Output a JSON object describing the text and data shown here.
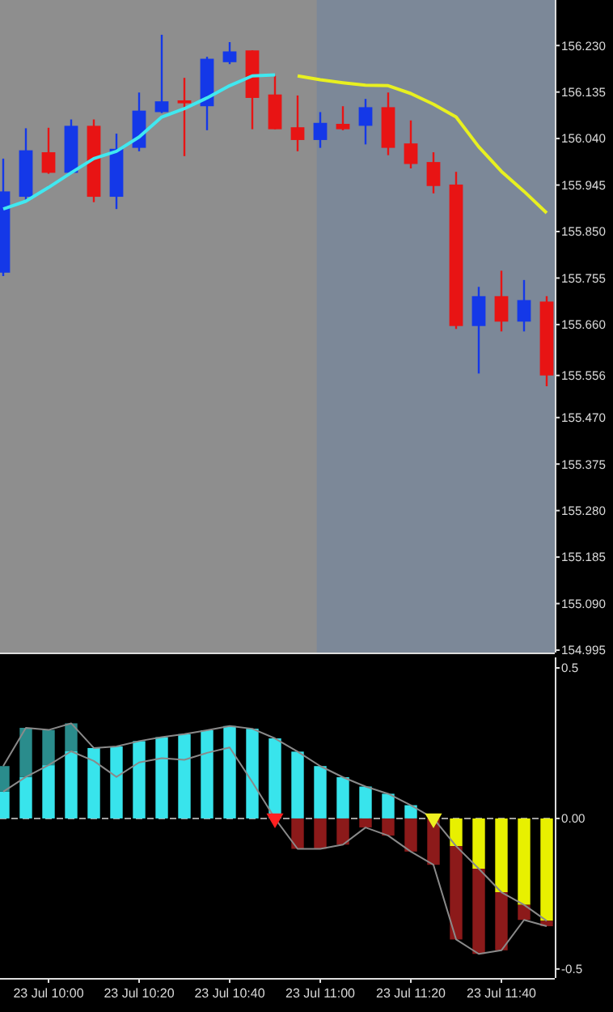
{
  "chart_data": [
    {
      "type": "candlestick",
      "categories": [
        null,
        null,
        null,
        null,
        null,
        null,
        null,
        null,
        null,
        null,
        null,
        null,
        null,
        null,
        null,
        null,
        null,
        null,
        null,
        null,
        null,
        null,
        null,
        null,
        null
      ],
      "ohlc": [
        [
          155.766,
          155.999,
          155.759,
          155.932
        ],
        [
          155.921,
          156.061,
          155.912,
          156.016
        ],
        [
          156.012,
          156.062,
          155.968,
          155.97
        ],
        [
          155.97,
          156.079,
          155.968,
          156.066
        ],
        [
          156.066,
          156.079,
          155.91,
          155.921
        ],
        [
          155.921,
          156.05,
          155.896,
          156.019
        ],
        [
          156.021,
          156.134,
          156.014,
          156.097
        ],
        [
          156.094,
          156.252,
          156.092,
          156.116
        ],
        [
          156.118,
          156.164,
          156.004,
          156.112
        ],
        [
          156.106,
          156.207,
          156.057,
          156.203
        ],
        [
          156.196,
          156.237,
          156.192,
          156.218
        ],
        [
          156.22,
          156.22,
          156.059,
          156.123
        ],
        [
          156.13,
          156.168,
          156.059,
          156.059
        ],
        [
          156.063,
          156.128,
          156.014,
          156.037
        ],
        [
          156.037,
          156.094,
          156.021,
          156.072
        ],
        [
          156.07,
          156.106,
          156.057,
          156.059
        ],
        [
          156.066,
          156.121,
          156.028,
          156.104
        ],
        [
          156.104,
          156.134,
          156.006,
          156.021
        ],
        [
          156.03,
          156.077,
          155.979,
          155.988
        ],
        [
          155.992,
          156.012,
          155.928,
          155.943
        ],
        [
          155.946,
          155.972,
          155.651,
          155.657
        ],
        [
          155.657,
          155.737,
          155.56,
          155.718
        ],
        [
          155.718,
          155.77,
          155.646,
          155.666
        ],
        [
          155.666,
          155.751,
          155.646,
          155.71
        ],
        [
          155.707,
          155.718,
          155.534,
          155.556
        ]
      ],
      "series": [
        {
          "type": "line",
          "color": "#40e8f0",
          "values": [
            155.896,
            155.912,
            155.94,
            155.97,
            155.999,
            156.014,
            156.043,
            156.084,
            156.101,
            156.123,
            156.148,
            156.168,
            156.17,
            null,
            null,
            null,
            null,
            null,
            null,
            null,
            null,
            null,
            null,
            null,
            null
          ]
        },
        {
          "type": "line",
          "color": "#e8f020",
          "values": [
            null,
            null,
            null,
            null,
            null,
            null,
            null,
            null,
            null,
            null,
            null,
            null,
            null,
            156.168,
            156.16,
            156.154,
            156.149,
            156.148,
            156.132,
            156.11,
            156.084,
            156.023,
            155.973,
            155.932,
            155.888
          ]
        }
      ],
      "ylim": [
        154.99,
        156.323
      ],
      "yticks": [
        {
          "value": 156.23,
          "label": "156.230"
        },
        156.135,
        {
          "value": 156.04,
          "label": "156.040"
        },
        155.945,
        {
          "value": 155.85,
          "label": "155.850"
        },
        155.755,
        {
          "value": 155.66,
          "label": "155.660"
        },
        155.556,
        {
          "value": 155.47,
          "label": "155.470"
        },
        155.375,
        {
          "value": 155.28,
          "label": "155.280"
        },
        155.185,
        {
          "value": 155.09,
          "label": "155.090"
        },
        154.995
      ],
      "tick_labels": "y"
    },
    {
      "type": "bar",
      "stacked": true,
      "categories": [
        null,
        null,
        "23 Jul 10:00",
        null,
        null,
        null,
        "23 Jul 10:20",
        null,
        null,
        null,
        "23 Jul 10:40",
        null,
        null,
        null,
        "23 Jul 11:00",
        null,
        null,
        null,
        "23 Jul 11:20",
        null,
        null,
        null,
        "23 Jul 11:40",
        null,
        null
      ],
      "series": [
        {
          "type": "bar",
          "color": "#38e4ec",
          "values": [
            0.089,
            0.138,
            0.177,
            0.223,
            0.234,
            0.239,
            0.257,
            0.27,
            0.28,
            0.293,
            0.307,
            0.298,
            0.266,
            0.222,
            0.174,
            0.137,
            0.106,
            0.082,
            0.044,
            null,
            null,
            null,
            null,
            null,
            null
          ]
        },
        {
          "type": "bar",
          "color": "#2a8c8c",
          "values": [
            0.085,
            0.163,
            0.117,
            0.093,
            null,
            null,
            null,
            null,
            null,
            null,
            null,
            null,
            null,
            null,
            null,
            null,
            null,
            null,
            null,
            null,
            null,
            null,
            null,
            null,
            null
          ]
        },
        {
          "type": "bar",
          "color": "#e8f000",
          "values": [
            null,
            null,
            null,
            null,
            null,
            null,
            null,
            null,
            null,
            null,
            null,
            null,
            null,
            null,
            null,
            null,
            null,
            null,
            null,
            null,
            -0.092,
            -0.167,
            -0.245,
            -0.287,
            -0.34
          ]
        },
        {
          "type": "bar",
          "color": "#8c1a1a",
          "values": [
            null,
            null,
            null,
            null,
            null,
            null,
            null,
            null,
            null,
            null,
            null,
            null,
            null,
            -0.101,
            -0.101,
            -0.087,
            -0.03,
            -0.057,
            -0.11,
            -0.154,
            -0.31,
            -0.283,
            -0.193,
            -0.05,
            -0.018
          ]
        },
        {
          "type": "line",
          "color": "#8a8a8a",
          "values": [
            0.174,
            0.301,
            0.294,
            0.316,
            0.234,
            0.239,
            0.257,
            0.27,
            0.28,
            0.293,
            0.307,
            0.298,
            0.266,
            0.222,
            0.174,
            0.137,
            0.106,
            0.082,
            0.044,
            0.0,
            -0.092,
            -0.167,
            -0.245,
            -0.287,
            -0.34
          ]
        },
        {
          "type": "line",
          "color": "#8a8a8a",
          "values": [
            0.089,
            0.138,
            0.177,
            0.223,
            0.191,
            0.138,
            0.186,
            0.2,
            0.195,
            0.218,
            0.236,
            0.121,
            0.0,
            -0.101,
            -0.101,
            -0.087,
            -0.03,
            -0.057,
            -0.11,
            -0.154,
            -0.402,
            -0.45,
            -0.438,
            -0.337,
            -0.358
          ]
        },
        {
          "type": "scatter",
          "color": "#ff2020",
          "marker": "triangle",
          "values": [
            null,
            null,
            null,
            null,
            null,
            null,
            null,
            null,
            null,
            null,
            null,
            null,
            0.0,
            null,
            null,
            null,
            null,
            null,
            null,
            null,
            null,
            null,
            null,
            null,
            null
          ]
        },
        {
          "type": "scatter",
          "color": "#f0f020",
          "marker": "triangle",
          "values": [
            null,
            null,
            null,
            null,
            null,
            null,
            null,
            null,
            null,
            null,
            null,
            null,
            null,
            null,
            null,
            null,
            null,
            null,
            null,
            0.0,
            null,
            null,
            null,
            null,
            null
          ]
        }
      ],
      "ylim": [
        -0.53,
        0.535
      ],
      "yticks": [
        0.5,
        {
          "value": 0,
          "label": "0.00"
        },
        -0.5
      ],
      "ref_lines": [
        {
          "axis": "y",
          "value": 0,
          "color": "#a0a0a0",
          "line_style": "dashed"
        }
      ]
    }
  ]
}
